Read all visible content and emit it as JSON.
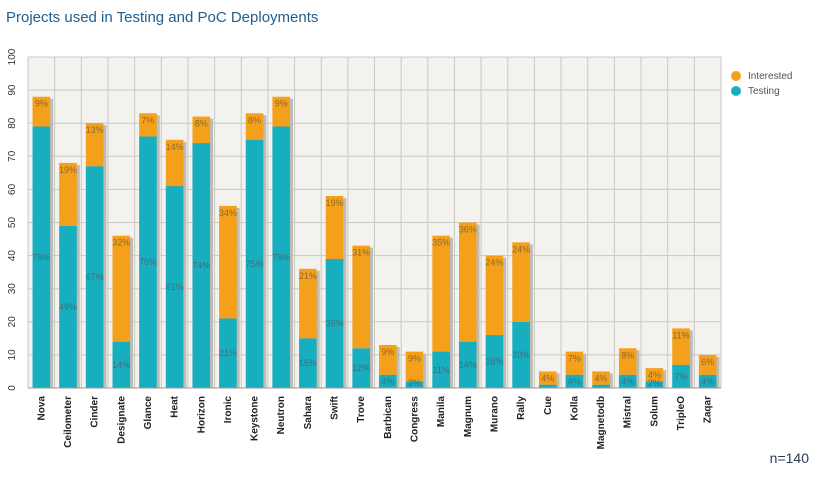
{
  "header": {
    "title": "Projects used in Testing and PoC Deployments"
  },
  "footer": {
    "note": "n=140"
  },
  "colors": {
    "interested": "#f5a01a",
    "testing": "#17aec0",
    "plot_bg": "#f3f2ee",
    "grid": "#c9c9c2"
  },
  "chart_data": {
    "type": "bar",
    "stacked": true,
    "title": "Projects used in Testing and PoC Deployments",
    "xlabel": "",
    "ylabel": "",
    "ylim": [
      0,
      100
    ],
    "yticks": [
      0,
      10,
      20,
      30,
      40,
      50,
      60,
      70,
      80,
      90,
      100
    ],
    "grid": true,
    "legend_position": "top-right",
    "categories": [
      "Nova",
      "Ceilometer",
      "Cinder",
      "Designate",
      "Glance",
      "Heat",
      "Horizon",
      "Ironic",
      "Keystone",
      "Neutron",
      "Sahara",
      "Swift",
      "Trove",
      "Barbican",
      "Congress",
      "Manila",
      "Magnum",
      "Murano",
      "Rally",
      "Cue",
      "Kolla",
      "Magnetodb",
      "Mistral",
      "Solum",
      "TripleO",
      "Zaqar"
    ],
    "series": [
      {
        "name": "Testing",
        "values": [
          79,
          49,
          67,
          14,
          76,
          61,
          74,
          21,
          75,
          79,
          15,
          39,
          12,
          4,
          2,
          11,
          14,
          16,
          20,
          1,
          4,
          1,
          4,
          2,
          7,
          4
        ],
        "labels": [
          "79%",
          "49%",
          "67%",
          "14%",
          "76%",
          "61%",
          "74%",
          "21%",
          "75%",
          "79%",
          "15%",
          "39%",
          "12%",
          "4%",
          "2%",
          "11%",
          "14%",
          "16%",
          "20%",
          "",
          "4%",
          "",
          "4%",
          "2%",
          "7%",
          "4%"
        ]
      },
      {
        "name": "Interested",
        "values": [
          9,
          19,
          13,
          32,
          7,
          14,
          8,
          34,
          8,
          9,
          21,
          19,
          31,
          9,
          9,
          35,
          36,
          24,
          24,
          4,
          7,
          4,
          8,
          4,
          11,
          6
        ],
        "labels": [
          "9%",
          "19%",
          "13%",
          "32%",
          "7%",
          "14%",
          "8%",
          "34%",
          "8%",
          "9%",
          "21%",
          "19%",
          "31%",
          "9%",
          "9%",
          "35%",
          "36%",
          "24%",
          "24%",
          "4%",
          "7%",
          "4%",
          "8%",
          "4%",
          "11%",
          "6%"
        ]
      }
    ]
  }
}
